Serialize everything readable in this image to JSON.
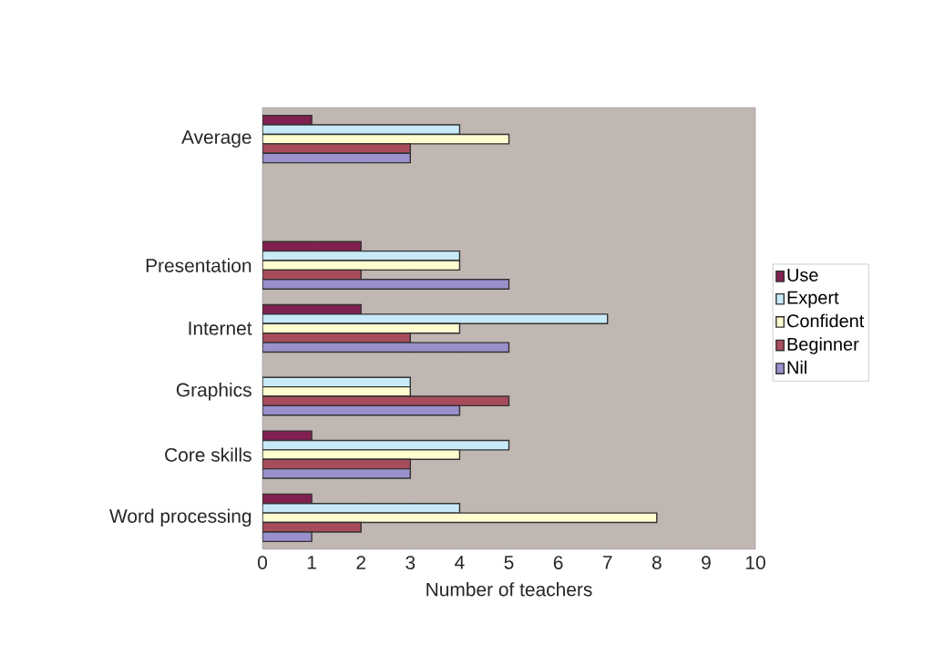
{
  "chart_data": {
    "type": "bar",
    "orientation": "horizontal",
    "xlabel": "Number of teachers",
    "categories": [
      "Average",
      null,
      "Presentation",
      "Internet",
      "Graphics",
      "Core skills",
      "Word processing"
    ],
    "series": [
      {
        "name": "Use",
        "color": "#802050",
        "values": [
          1,
          null,
          2,
          2,
          null,
          1,
          1
        ]
      },
      {
        "name": "Expert",
        "color": "#c8eaf8",
        "values": [
          4,
          null,
          4,
          7,
          3,
          5,
          4
        ]
      },
      {
        "name": "Confident",
        "color": "#fffcd0",
        "values": [
          5,
          null,
          4,
          4,
          3,
          4,
          8
        ]
      },
      {
        "name": "Beginner",
        "color": "#a84c5c",
        "values": [
          3,
          null,
          2,
          3,
          5,
          3,
          2
        ]
      },
      {
        "name": "Nil",
        "color": "#9a90cc",
        "values": [
          3,
          null,
          5,
          5,
          4,
          3,
          1
        ]
      }
    ],
    "xlim": [
      0,
      10
    ],
    "xticks": [
      0,
      1,
      2,
      3,
      4,
      5,
      6,
      7,
      8,
      9,
      10
    ],
    "grid": "x",
    "legend": "right"
  }
}
